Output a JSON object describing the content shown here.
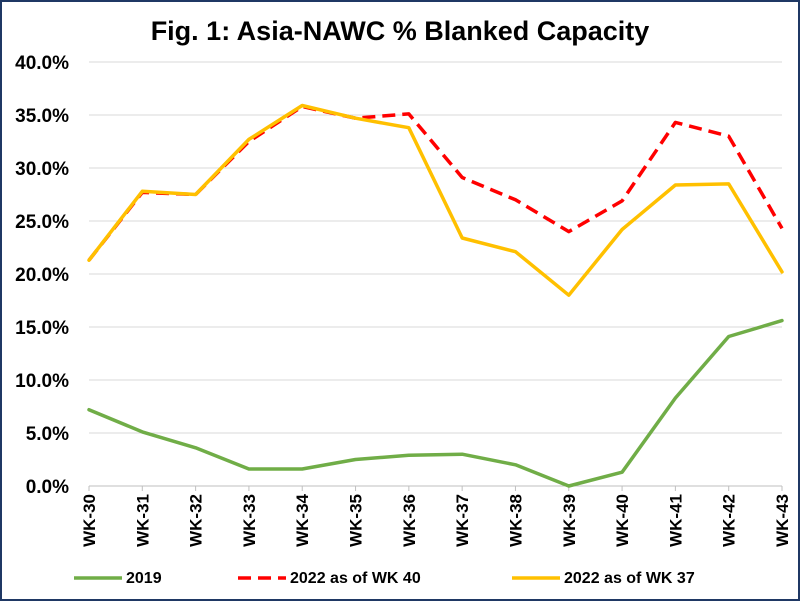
{
  "chart_data": {
    "type": "line",
    "title": "Fig. 1: Asia-NAWC % Blanked Capacity",
    "xlabel": "",
    "ylabel": "",
    "ylim": [
      0,
      40
    ],
    "grid": true,
    "legend_position": "bottom",
    "categories": [
      "WK-30",
      "WK-31",
      "WK-32",
      "WK-33",
      "WK-34",
      "WK-35",
      "WK-36",
      "WK-37",
      "WK-38",
      "WK-39",
      "WK-40",
      "WK-41",
      "WK-42",
      "WK-43"
    ],
    "y_ticks": [
      "0.0%",
      "5.0%",
      "10.0%",
      "15.0%",
      "20.0%",
      "25.0%",
      "30.0%",
      "35.0%",
      "40.0%"
    ],
    "series": [
      {
        "name": "2019",
        "color": "#70ad47",
        "dash": "solid",
        "values": [
          7.2,
          5.1,
          3.6,
          1.6,
          1.6,
          2.5,
          2.9,
          3.0,
          2.0,
          0.0,
          1.3,
          8.3,
          14.1,
          15.6
        ]
      },
      {
        "name": "2022 as of WK 40",
        "color": "#ff0000",
        "dash": "dashed",
        "values": [
          21.3,
          27.7,
          27.5,
          32.5,
          35.8,
          34.7,
          35.1,
          29.1,
          27.0,
          24.0,
          26.9,
          34.3,
          33.0,
          24.3
        ]
      },
      {
        "name": "2022 as of WK 37",
        "color": "#ffc000",
        "dash": "solid",
        "values": [
          21.3,
          27.8,
          27.5,
          32.7,
          35.9,
          34.7,
          33.8,
          23.4,
          22.1,
          18.0,
          24.2,
          28.4,
          28.5,
          20.2
        ]
      }
    ]
  }
}
